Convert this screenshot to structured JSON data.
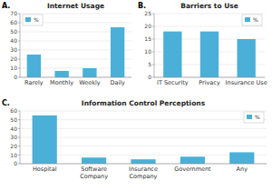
{
  "chart_data": [
    {
      "type": "bar",
      "title": "Internet Usage",
      "categories": [
        "Rarely",
        "Monthly",
        "Weekly",
        "Daily"
      ],
      "series": [
        {
          "name": "%",
          "color": "#4ab0d8",
          "values": [
            25,
            7,
            10,
            55
          ]
        }
      ],
      "ylim": [
        0,
        70
      ],
      "yticks": [
        0,
        10,
        20,
        30,
        40,
        50,
        60,
        70
      ],
      "grid": true,
      "legend": "upper left",
      "annotations": [
        "A."
      ]
    },
    {
      "type": "bar",
      "title": "Barriers to Use",
      "categories": [
        "IT Security",
        "Privacy",
        "Insurance Use"
      ],
      "series": [
        {
          "name": "%",
          "color": "#4ab0d8",
          "values": [
            18,
            18,
            15
          ]
        }
      ],
      "ylim": [
        0,
        25
      ],
      "yticks": [
        0,
        5,
        10,
        15,
        20,
        25
      ],
      "grid": true,
      "legend": "upper right",
      "annotations": [
        "B."
      ]
    },
    {
      "type": "bar",
      "title": "Information Control Perceptions",
      "categories": [
        "Hospital",
        "Software\nCompany",
        "Insurance\nCompany",
        "Government",
        "Any"
      ],
      "series": [
        {
          "name": "%",
          "color": "#4ab0d8",
          "values": [
            55,
            7,
            5,
            8,
            13
          ]
        }
      ],
      "ylim": [
        0,
        60
      ],
      "yticks": [
        0,
        10,
        20,
        30,
        40,
        50,
        60
      ],
      "grid": true,
      "legend": "upper right",
      "annotations": [
        "C."
      ]
    }
  ]
}
